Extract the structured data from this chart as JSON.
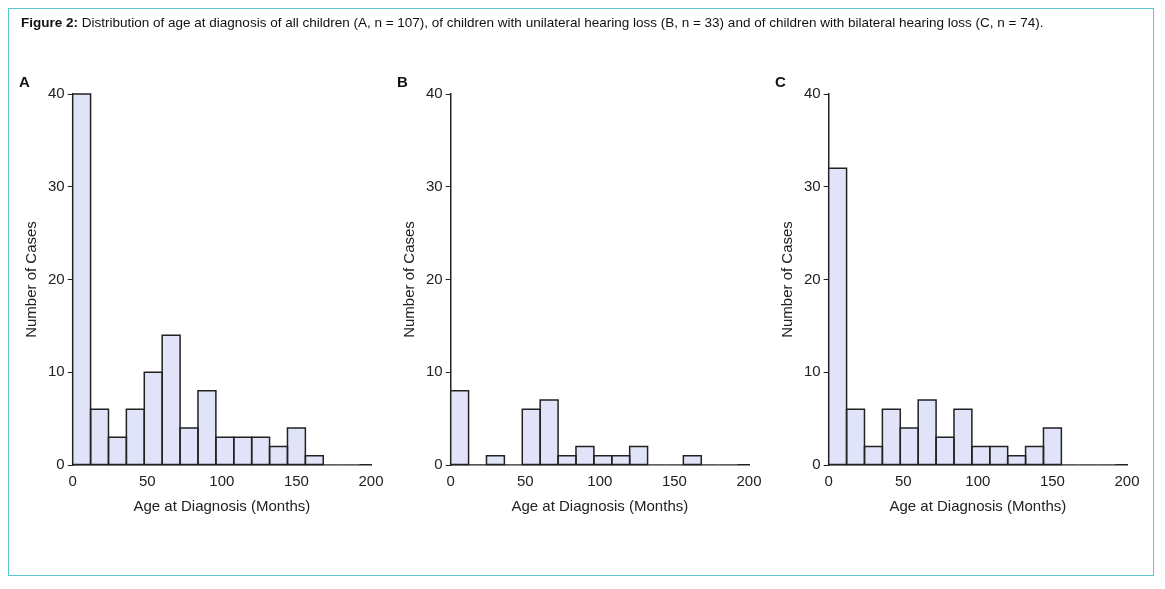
{
  "chart_data": [
    {
      "type": "histogram",
      "title": "A",
      "annotations": [
        "Figure 2: Distribution of age at diagnosis of all children (A, n = 107), of children with unilateral hearing loss (B, n = 33) and of children with bilateral hearing loss (C, n = 74)."
      ],
      "xlabel": "Age at Diagnosis (Months)",
      "ylabel": "Number of Cases",
      "bins": [
        0,
        12,
        24,
        36,
        48,
        60,
        72,
        84,
        96,
        108,
        120,
        132,
        144,
        156,
        168,
        180,
        192
      ],
      "values": [
        40,
        6,
        3,
        6,
        10,
        14,
        4,
        8,
        3,
        3,
        3,
        2,
        4,
        1,
        0,
        0
      ],
      "color": "#e1e4f8",
      "xlim": [
        0,
        200
      ],
      "xticks": [
        0,
        50,
        100,
        150,
        200
      ],
      "ylim": [
        0,
        40
      ],
      "yticks": [
        0,
        10,
        20,
        30,
        40
      ],
      "grid": false,
      "legend": false
    },
    {
      "type": "histogram",
      "title": "B",
      "xlabel": "Age at Diagnosis (Months)",
      "ylabel": "Number of Cases",
      "bins": [
        0,
        12,
        24,
        36,
        48,
        60,
        72,
        84,
        96,
        108,
        120,
        132,
        144,
        156,
        168,
        180,
        192
      ],
      "values": [
        8,
        0,
        1,
        0,
        6,
        7,
        1,
        2,
        1,
        1,
        2,
        0,
        0,
        1,
        0,
        0
      ],
      "color": "#e1e4f8",
      "xlim": [
        0,
        200
      ],
      "xticks": [
        0,
        50,
        100,
        150,
        200
      ],
      "ylim": [
        0,
        40
      ],
      "yticks": [
        0,
        10,
        20,
        30,
        40
      ],
      "grid": false,
      "legend": false
    },
    {
      "type": "histogram",
      "title": "C",
      "xlabel": "Age at Diagnosis (Months)",
      "ylabel": "Number of Cases",
      "bins": [
        0,
        12,
        24,
        36,
        48,
        60,
        72,
        84,
        96,
        108,
        120,
        132,
        144,
        156,
        168,
        180,
        192
      ],
      "values": [
        32,
        6,
        2,
        6,
        4,
        7,
        3,
        6,
        2,
        2,
        1,
        2,
        4,
        0,
        0,
        0
      ],
      "color": "#e1e4f8",
      "xlim": [
        0,
        200
      ],
      "xticks": [
        0,
        50,
        100,
        150,
        200
      ],
      "ylim": [
        0,
        40
      ],
      "yticks": [
        0,
        10,
        20,
        30,
        40
      ],
      "grid": false,
      "legend": false
    }
  ]
}
